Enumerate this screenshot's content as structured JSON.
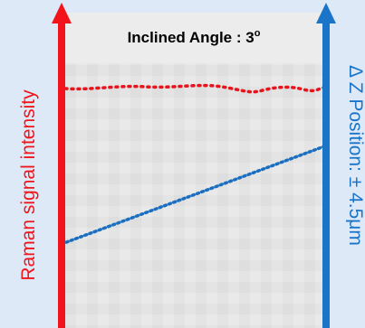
{
  "header": {
    "title": "Inclined Angle : 3",
    "superscript": "o"
  },
  "left_axis": {
    "label": "Raman signal intensity"
  },
  "right_axis": {
    "label": "Δ Z Position: ± 4.5μm"
  }
}
